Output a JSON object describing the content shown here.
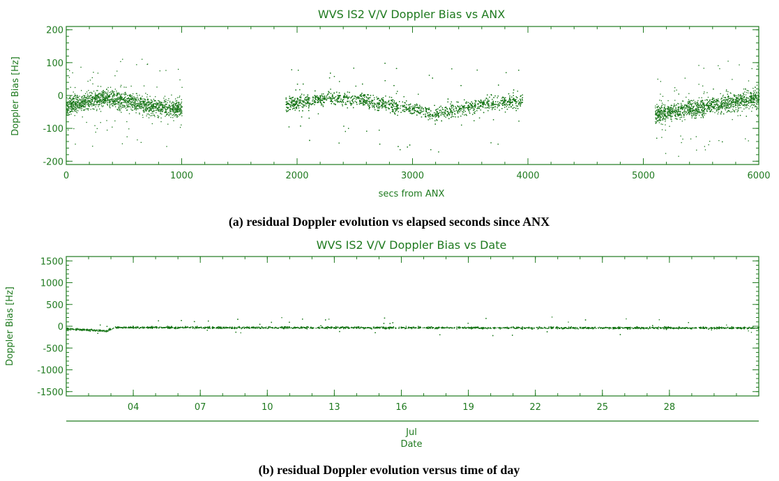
{
  "colors": {
    "plot": "#1f7a1f",
    "data": "#137313"
  },
  "captions": {
    "a": "(a) residual Doppler evolution vs elapsed seconds since ANX",
    "b": "(b) residual Doppler evolution versus time of day"
  },
  "chart_data": [
    {
      "type": "scatter",
      "title": "WVS IS2 V/V Doppler Bias vs ANX",
      "xlabel": "secs from ANX",
      "ylabel": "Doppler Bias [Hz]",
      "xlim": [
        0,
        6000
      ],
      "ylim": [
        -210,
        210
      ],
      "x_ticks": [
        0,
        1000,
        2000,
        3000,
        4000,
        5000,
        6000
      ],
      "x_tick_labels": [
        "0",
        "1000",
        "2000",
        "3000",
        "4000",
        "5000",
        "6000"
      ],
      "y_ticks": [
        -200,
        -100,
        0,
        100,
        200
      ],
      "y_tick_labels": [
        "-200",
        "-100",
        "0",
        "100",
        "200"
      ],
      "grid": false,
      "segments": [
        {
          "x_range": [
            0,
            1000
          ],
          "trend": [
            [
              0,
              -30
            ],
            [
              350,
              -5
            ],
            [
              700,
              -30
            ],
            [
              1000,
              -40
            ]
          ],
          "spread": 38
        },
        {
          "x_range": [
            1900,
            3950
          ],
          "trend": [
            [
              1900,
              -25
            ],
            [
              2300,
              -5
            ],
            [
              2700,
              -20
            ],
            [
              3200,
              -55
            ],
            [
              3600,
              -25
            ],
            [
              3950,
              -15
            ]
          ],
          "spread": 30
        },
        {
          "x_range": [
            5100,
            6000
          ],
          "trend": [
            [
              5100,
              -55
            ],
            [
              5500,
              -35
            ],
            [
              6000,
              -5
            ]
          ],
          "spread": 38
        }
      ]
    },
    {
      "type": "scatter",
      "title": "WVS IS2 V/V Doppler Bias vs Date",
      "xlabel": "Date",
      "x_axis_month": "Jul",
      "ylabel": "Doppler Bias [Hz]",
      "xlim": [
        1,
        32
      ],
      "ylim": [
        -1600,
        1600
      ],
      "x_ticks": [
        4,
        7,
        10,
        13,
        16,
        19,
        22,
        25,
        28
      ],
      "x_tick_labels": [
        "04",
        "07",
        "10",
        "13",
        "16",
        "19",
        "22",
        "25",
        "28"
      ],
      "y_ticks": [
        -1500,
        -1000,
        -500,
        0,
        500,
        1000,
        1500
      ],
      "y_tick_labels": [
        "-1500",
        "-1000",
        "-500",
        "0",
        "500",
        "1000",
        "1500"
      ],
      "grid": false,
      "trend": [
        [
          1,
          -50
        ],
        [
          2.8,
          -100
        ],
        [
          3.1,
          -20
        ],
        [
          32,
          -30
        ]
      ],
      "spread": 30
    }
  ]
}
